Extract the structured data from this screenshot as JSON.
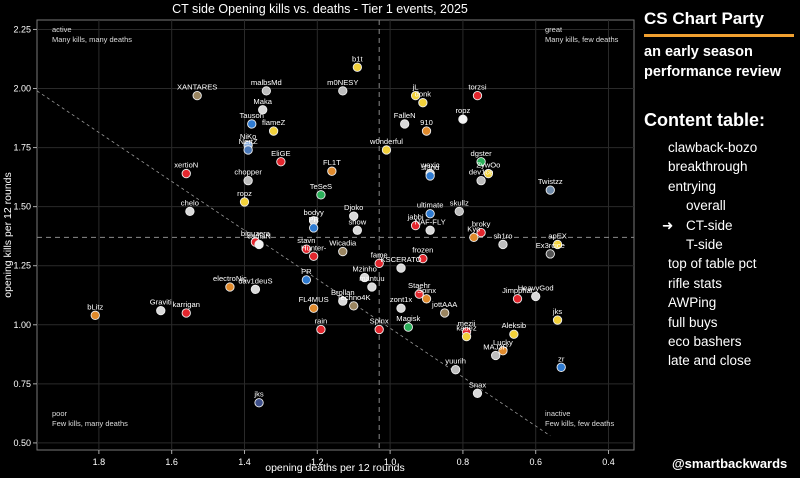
{
  "chart_data": {
    "type": "scatter",
    "title": "CT side Opening kills vs. deaths - Tier 1 events, 2025",
    "xlabel": "opening deaths per 12 rounds",
    "ylabel": "opening kills per 12 rounds",
    "xlim": [
      1.97,
      0.33
    ],
    "ylim": [
      0.47,
      2.29
    ],
    "x_reversed": true,
    "xticks": [
      1.8,
      1.6,
      1.4,
      1.2,
      1.0,
      0.8,
      0.6,
      0.4
    ],
    "xtick_labels": [
      "1.8",
      "1.6",
      "1.4",
      "1.2",
      "1.0",
      "0.8",
      "0.6",
      "0.4"
    ],
    "yticks": [
      0.5,
      0.75,
      1.0,
      1.25,
      1.5,
      1.75,
      2.0,
      2.25
    ],
    "ytick_labels": [
      "0.50",
      "0.75",
      "1.00",
      "1.25",
      "1.50",
      "1.75",
      "2.00",
      "2.25"
    ],
    "reference_lines": {
      "vertical_x": 1.03,
      "horizontal_y": 1.37
    },
    "diagonal_line": {
      "from": [
        1.97,
        1.99
      ],
      "to": [
        0.56,
        0.53
      ]
    },
    "quadrant_labels": [
      {
        "pos": "top-left",
        "title": "active",
        "text": "Many kills, many deaths"
      },
      {
        "pos": "top-right",
        "title": "great",
        "text": "Many kills, few deaths"
      },
      {
        "pos": "bottom-left",
        "title": "poor",
        "text": "Few kills, many deaths"
      },
      {
        "pos": "bottom-right",
        "title": "inactive",
        "text": "Few kills, few deaths"
      }
    ],
    "points": [
      {
        "label": "b1t",
        "x": 1.09,
        "y": 2.09,
        "color": "#f2d13a"
      },
      {
        "label": "XANTARES",
        "x": 1.53,
        "y": 1.97,
        "color": "#9a8560"
      },
      {
        "label": "malbsMd",
        "x": 1.34,
        "y": 1.99,
        "color": "#bdbdbd"
      },
      {
        "label": "m0NESY",
        "x": 1.13,
        "y": 1.99,
        "color": "#bdbdbd"
      },
      {
        "label": "jL",
        "x": 0.93,
        "y": 1.97,
        "color": "#f2d13a"
      },
      {
        "label": "torzsi",
        "x": 0.76,
        "y": 1.97,
        "color": "#e3262d"
      },
      {
        "label": "donk",
        "x": 0.91,
        "y": 1.94,
        "color": "#f2d13a"
      },
      {
        "label": "Maka",
        "x": 1.35,
        "y": 1.91,
        "color": "#d9d9d9"
      },
      {
        "label": "Tauson",
        "x": 1.38,
        "y": 1.85,
        "color": "#2f7bd1"
      },
      {
        "label": "flameZ",
        "x": 1.32,
        "y": 1.82,
        "color": "#f2d13a"
      },
      {
        "label": "FalleN",
        "x": 0.96,
        "y": 1.85,
        "color": "#d9d9d9"
      },
      {
        "label": "910",
        "x": 0.9,
        "y": 1.82,
        "color": "#e08a2c"
      },
      {
        "label": "ropz",
        "x": 0.8,
        "y": 1.87,
        "color": "#f2f2f2"
      },
      {
        "label": "NiKo",
        "x": 1.39,
        "y": 1.76,
        "color": "#8fb2e0"
      },
      {
        "label": "NertZ",
        "x": 1.39,
        "y": 1.74,
        "color": "#4a78b8"
      },
      {
        "label": "w0nderful",
        "x": 1.01,
        "y": 1.74,
        "color": "#f2d13a"
      },
      {
        "label": "EliGE",
        "x": 1.3,
        "y": 1.69,
        "color": "#e3262d"
      },
      {
        "label": "xertioN",
        "x": 1.56,
        "y": 1.64,
        "color": "#e3262d"
      },
      {
        "label": "FL1T",
        "x": 1.16,
        "y": 1.65,
        "color": "#e08a2c"
      },
      {
        "label": "dgster",
        "x": 0.75,
        "y": 1.69,
        "color": "#2bb05a"
      },
      {
        "label": "woxic",
        "x": 0.89,
        "y": 1.64,
        "color": "#d9d9d9"
      },
      {
        "label": "ZywOo",
        "x": 0.73,
        "y": 1.64,
        "color": "#f2d13a"
      },
      {
        "label": "sl3nd",
        "x": 0.89,
        "y": 1.63,
        "color": "#2f7bd1"
      },
      {
        "label": "dev1ce",
        "x": 0.75,
        "y": 1.61,
        "color": "#bdbdbd"
      },
      {
        "label": "chopper",
        "x": 1.39,
        "y": 1.61,
        "color": "#bdbdbd"
      },
      {
        "label": "TeSeS",
        "x": 1.19,
        "y": 1.55,
        "color": "#2bb05a"
      },
      {
        "label": "Twistzz",
        "x": 0.56,
        "y": 1.57,
        "color": "#6f8aa8"
      },
      {
        "label": "ropz",
        "x": 1.4,
        "y": 1.52,
        "color": "#f2d13a"
      },
      {
        "label": "chelo",
        "x": 1.55,
        "y": 1.48,
        "color": "#d9d9d9"
      },
      {
        "label": "bodyy",
        "x": 1.21,
        "y": 1.44,
        "color": "#d9d9d9"
      },
      {
        "label": "Djoko",
        "x": 1.1,
        "y": 1.46,
        "color": "#d9d9d9"
      },
      {
        "label": "ultimate",
        "x": 0.89,
        "y": 1.47,
        "color": "#2f7bd1"
      },
      {
        "label": "skullz",
        "x": 0.81,
        "y": 1.48,
        "color": "#bdbdbd"
      },
      {
        "label": "PR",
        "x": 1.21,
        "y": 1.41,
        "color": "#2f7bd1"
      },
      {
        "label": "snow",
        "x": 1.09,
        "y": 1.4,
        "color": "#d9d9d9"
      },
      {
        "label": "jabbi",
        "x": 0.93,
        "y": 1.42,
        "color": "#e3262d"
      },
      {
        "label": "NAF-FLY",
        "x": 0.89,
        "y": 1.4,
        "color": "#d9d9d9"
      },
      {
        "label": "broky",
        "x": 0.75,
        "y": 1.39,
        "color": "#e3262d"
      },
      {
        "label": "Kyo",
        "x": 0.77,
        "y": 1.37,
        "color": "#e08a2c"
      },
      {
        "label": "sh1ro",
        "x": 0.69,
        "y": 1.34,
        "color": "#bdbdbd"
      },
      {
        "label": "apEX",
        "x": 0.54,
        "y": 1.34,
        "color": "#f2d13a"
      },
      {
        "label": "biguzera",
        "x": 1.37,
        "y": 1.35,
        "color": "#e3262d"
      },
      {
        "label": "cadiaN",
        "x": 1.36,
        "y": 1.34,
        "color": "#f2f2f2"
      },
      {
        "label": "stavn",
        "x": 1.23,
        "y": 1.32,
        "color": "#e3262d"
      },
      {
        "label": "Wicadia",
        "x": 1.13,
        "y": 1.31,
        "color": "#9a8560"
      },
      {
        "label": "Hunter-",
        "x": 1.21,
        "y": 1.29,
        "color": "#e3262d"
      },
      {
        "label": "Ex3rcice",
        "x": 0.56,
        "y": 1.3,
        "color": "#555555"
      },
      {
        "label": "frozen",
        "x": 0.91,
        "y": 1.28,
        "color": "#e3262d"
      },
      {
        "label": "fame",
        "x": 1.03,
        "y": 1.26,
        "color": "#e3262d"
      },
      {
        "label": "KSCERATO",
        "x": 0.97,
        "y": 1.24,
        "color": "#d9d9d9"
      },
      {
        "label": "PR",
        "x": 1.23,
        "y": 1.19,
        "color": "#2f7bd1"
      },
      {
        "label": "Mzinho",
        "x": 1.07,
        "y": 1.2,
        "color": "#d9d9d9"
      },
      {
        "label": "mantuu",
        "x": 1.05,
        "y": 1.16,
        "color": "#d9d9d9"
      },
      {
        "label": "electroNic",
        "x": 1.44,
        "y": 1.16,
        "color": "#e08a2c"
      },
      {
        "label": "dav1deuS",
        "x": 1.37,
        "y": 1.15,
        "color": "#d9d9d9"
      },
      {
        "label": "Staehr",
        "x": 0.92,
        "y": 1.13,
        "color": "#e3262d"
      },
      {
        "label": "Spinx",
        "x": 0.9,
        "y": 1.11,
        "color": "#e08a2c"
      },
      {
        "label": "HeavyGod",
        "x": 0.6,
        "y": 1.12,
        "color": "#d9d9d9"
      },
      {
        "label": "Jimpphat",
        "x": 0.65,
        "y": 1.11,
        "color": "#e3262d"
      },
      {
        "label": "Brollan",
        "x": 1.13,
        "y": 1.1,
        "color": "#d9d9d9"
      },
      {
        "label": "FL4MUS",
        "x": 1.21,
        "y": 1.07,
        "color": "#e08a2c"
      },
      {
        "label": "Techno4K",
        "x": 1.1,
        "y": 1.08,
        "color": "#9a8560"
      },
      {
        "label": "zont1x",
        "x": 0.97,
        "y": 1.07,
        "color": "#d9d9d9"
      },
      {
        "label": "jottAAA",
        "x": 0.85,
        "y": 1.05,
        "color": "#9a8560"
      },
      {
        "label": "bLitz",
        "x": 1.81,
        "y": 1.04,
        "color": "#e08a2c"
      },
      {
        "label": "Graviti",
        "x": 1.63,
        "y": 1.06,
        "color": "#d9d9d9"
      },
      {
        "label": "karrigan",
        "x": 1.56,
        "y": 1.05,
        "color": "#e3262d"
      },
      {
        "label": "jks",
        "x": 0.54,
        "y": 1.02,
        "color": "#f2d13a"
      },
      {
        "label": "rain",
        "x": 1.19,
        "y": 0.98,
        "color": "#e3262d"
      },
      {
        "label": "Spinx",
        "x": 1.03,
        "y": 0.98,
        "color": "#e3262d"
      },
      {
        "label": "Magisk",
        "x": 0.95,
        "y": 0.99,
        "color": "#2bb05a"
      },
      {
        "label": "mezii",
        "x": 0.79,
        "y": 0.97,
        "color": "#e3262d"
      },
      {
        "label": "Aleksib",
        "x": 0.66,
        "y": 0.96,
        "color": "#f2d13a"
      },
      {
        "label": "kauez",
        "x": 0.79,
        "y": 0.95,
        "color": "#f2d13a"
      },
      {
        "label": "Lucky",
        "x": 0.69,
        "y": 0.89,
        "color": "#e08a2c"
      },
      {
        "label": "MAJ3R",
        "x": 0.71,
        "y": 0.87,
        "color": "#bdbdbd"
      },
      {
        "label": "yuurih",
        "x": 0.82,
        "y": 0.81,
        "color": "#bdbdbd"
      },
      {
        "label": "zr",
        "x": 0.53,
        "y": 0.82,
        "color": "#2f7bd1"
      },
      {
        "label": "Snax",
        "x": 0.76,
        "y": 0.71,
        "color": "#d9d9d9"
      },
      {
        "label": "jks",
        "x": 1.36,
        "y": 0.67,
        "color": "#3d4f8a"
      }
    ]
  },
  "sidebar": {
    "brand": "CS Chart Party",
    "subtitle": "an early season performance review",
    "toc_title": "Content table:",
    "toc_items": [
      {
        "label": "clawback-bozo"
      },
      {
        "label": "breakthrough"
      },
      {
        "label": "entrying"
      },
      {
        "label": "overall",
        "sub": true
      },
      {
        "label": "CT-side",
        "sub": true,
        "current": true,
        "marker": "➜"
      },
      {
        "label": "T-side",
        "sub": true
      },
      {
        "label": "top of table pct"
      },
      {
        "label": "rifle stats"
      },
      {
        "label": "AWPing"
      },
      {
        "label": "full buys"
      },
      {
        "label": "eco bashers"
      },
      {
        "label": "late and close"
      }
    ],
    "handle": "@smartbackwards"
  },
  "colors": {
    "background": "#000000",
    "plot_edge": "#777777",
    "accent": "#f0a030",
    "text": "#ffffff"
  }
}
